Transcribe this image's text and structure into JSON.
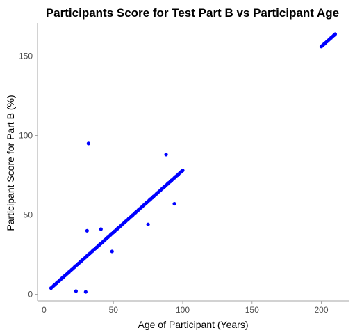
{
  "chart_data": {
    "type": "scatter",
    "title": "Participants Score for Test Part B vs Participant Age",
    "xlabel": "Age of Participant (Years)",
    "ylabel": "Participant Score for Part B (%)",
    "xlim": [
      0,
      210
    ],
    "ylim": [
      0,
      165
    ],
    "xticks": [
      0,
      50,
      100,
      150,
      200
    ],
    "yticks": [
      0,
      50,
      100,
      150
    ],
    "grid": false,
    "point_color": "#0000ff",
    "trend_segments": [
      {
        "x_start": 5,
        "x_end": 100,
        "slope": 0.78,
        "intercept": 0
      },
      {
        "x_start": 200,
        "x_end": 210,
        "slope": 0.78,
        "intercept": 0
      }
    ],
    "outliers": [
      {
        "x": 32,
        "y": 95
      },
      {
        "x": 88,
        "y": 88
      },
      {
        "x": 94,
        "y": 57
      },
      {
        "x": 31,
        "y": 40
      },
      {
        "x": 41,
        "y": 41
      },
      {
        "x": 75,
        "y": 44
      },
      {
        "x": 49,
        "y": 27
      },
      {
        "x": 23,
        "y": 2
      },
      {
        "x": 30,
        "y": 1.5
      }
    ]
  }
}
